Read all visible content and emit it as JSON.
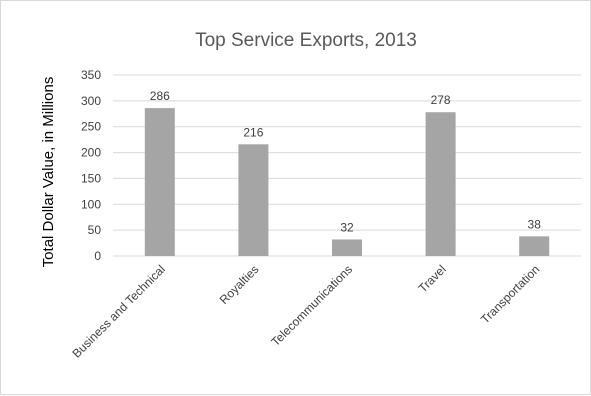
{
  "chart_data": {
    "type": "bar",
    "title": "Top Service Exports, 2013",
    "xlabel": "",
    "ylabel": "Total Dollar Value, in Millions",
    "categories": [
      "Business and Technical",
      "Royalties",
      "Telecommunications",
      "Travel",
      "Transportation"
    ],
    "values": [
      286,
      216,
      32,
      278,
      38
    ],
    "data_labels": [
      "286",
      "216",
      "32",
      "278",
      "38"
    ],
    "ylim": [
      0,
      350
    ],
    "yticks": [
      0,
      50,
      100,
      150,
      200,
      250,
      300,
      350
    ],
    "grid": true,
    "legend": "none",
    "colors": {
      "bar": "#a5a5a5",
      "grid": "#d9d9d9",
      "text": "#595959"
    }
  }
}
